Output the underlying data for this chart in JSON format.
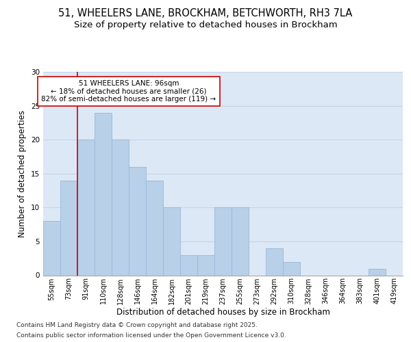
{
  "title_line1": "51, WHEELERS LANE, BROCKHAM, BETCHWORTH, RH3 7LA",
  "title_line2": "Size of property relative to detached houses in Brockham",
  "xlabel": "Distribution of detached houses by size in Brockham",
  "ylabel": "Number of detached properties",
  "footer_line1": "Contains HM Land Registry data © Crown copyright and database right 2025.",
  "footer_line2": "Contains public sector information licensed under the Open Government Licence v3.0.",
  "categories": [
    "55sqm",
    "73sqm",
    "91sqm",
    "110sqm",
    "128sqm",
    "146sqm",
    "164sqm",
    "182sqm",
    "201sqm",
    "219sqm",
    "237sqm",
    "255sqm",
    "273sqm",
    "292sqm",
    "310sqm",
    "328sqm",
    "346sqm",
    "364sqm",
    "383sqm",
    "401sqm",
    "419sqm"
  ],
  "values": [
    8,
    14,
    20,
    24,
    20,
    16,
    14,
    10,
    3,
    3,
    10,
    10,
    0,
    4,
    2,
    0,
    0,
    0,
    0,
    1,
    0
  ],
  "bar_color": "#b8d0e8",
  "bar_edge_color": "#9ab8d8",
  "background_color": "#dce8f5",
  "annotation_text": "51 WHEELERS LANE: 96sqm\n← 18% of detached houses are smaller (26)\n82% of semi-detached houses are larger (119) →",
  "vline_x_index": 2,
  "vline_color": "#cc0000",
  "annotation_box_color": "#cc0000",
  "ylim": [
    0,
    30
  ],
  "yticks": [
    0,
    5,
    10,
    15,
    20,
    25,
    30
  ],
  "grid_color": "#c8d4e4",
  "title_fontsize": 10.5,
  "subtitle_fontsize": 9.5,
  "axis_label_fontsize": 8.5,
  "tick_fontsize": 7,
  "annotation_fontsize": 7.5,
  "footer_fontsize": 6.5
}
